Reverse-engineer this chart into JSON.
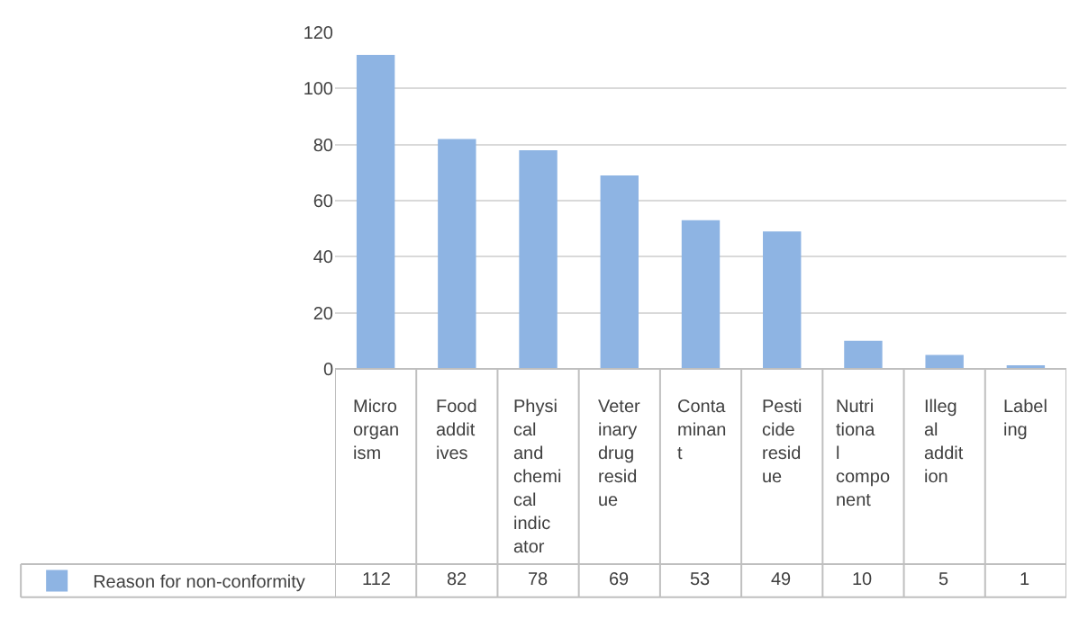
{
  "chart_data": {
    "type": "bar",
    "categories": [
      "Microorganism",
      "Food additives",
      "Physical and chemical indicator",
      "Veterinary drug residue",
      "Contaminant",
      "Pesticide residue",
      "Nutritional component",
      "Illegal addition",
      "Labeling"
    ],
    "series": [
      {
        "name": "Reason for non-conformity",
        "color": "#8eb4e3",
        "values": [
          112,
          82,
          78,
          69,
          53,
          49,
          10,
          5,
          1
        ]
      }
    ],
    "ylim": [
      0,
      120
    ],
    "yticks": [
      0,
      20,
      40,
      60,
      80,
      100,
      120
    ],
    "grid": "y",
    "data_labels": true,
    "legend": "bottom left"
  }
}
